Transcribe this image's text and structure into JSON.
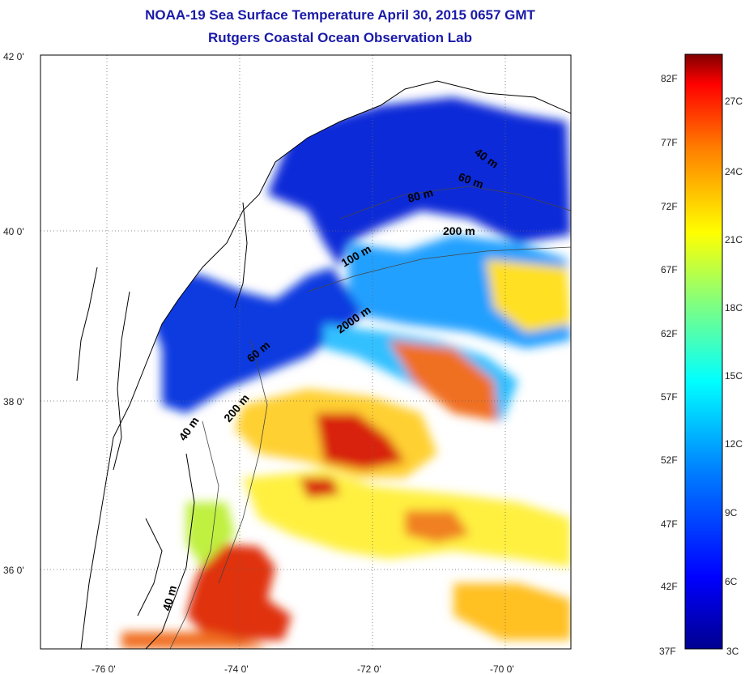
{
  "title": "NOAA-19 Sea Surface Temperature April 30, 2015 0657 GMT",
  "subtitle": "Rutgers Coastal Ocean Observation Lab",
  "lat_ticks": [
    "42 0'",
    "40 0'",
    "38 0'",
    "36 0'"
  ],
  "lon_ticks": [
    "-76 0'",
    "-74 0'",
    "-72 0'",
    "-70 0'"
  ],
  "contour_labels": [
    "40 m",
    "60 m",
    "80 m",
    "200 m",
    "100 m",
    "2000 m",
    "60 m",
    "200 m",
    "40 m",
    "40 m"
  ],
  "colorbar": {
    "fahrenheit": [
      "82F",
      "77F",
      "72F",
      "67F",
      "62F",
      "57F",
      "52F",
      "47F",
      "42F",
      "37F"
    ],
    "celsius": [
      "27C",
      "24C",
      "21C",
      "18C",
      "15C",
      "12C",
      "9C",
      "6C",
      "3C"
    ]
  },
  "colors": {
    "title": "#1a1aa8",
    "cold": "#0000c0",
    "warm": "#d02000"
  }
}
